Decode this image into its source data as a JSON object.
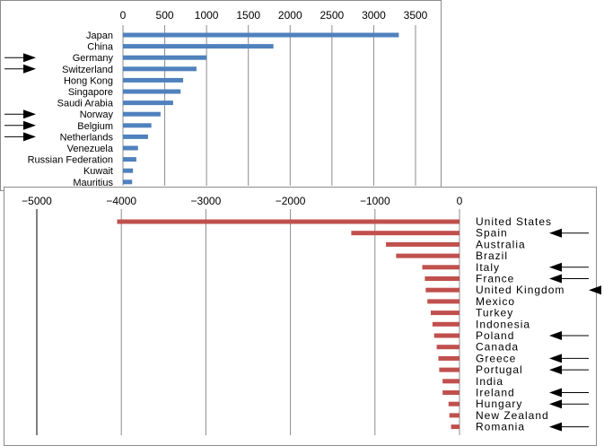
{
  "chart_data": [
    {
      "type": "bar",
      "orientation": "horizontal",
      "title": "",
      "xlabel": "",
      "ylabel": "",
      "xlim": [
        0,
        3500
      ],
      "xticks": [
        0,
        500,
        1000,
        1500,
        2000,
        2500,
        3000,
        3500
      ],
      "grid": true,
      "color": "#4F81BD",
      "categories": [
        "Japan",
        "China",
        "Germany",
        "Switzerland",
        "Hong Kong",
        "Singapore",
        "Saudi Arabia",
        "Norway",
        "Belgium",
        "Netherlands",
        "Venezuela",
        "Russian Federation",
        "Kuwait",
        "Mauritius"
      ],
      "values": [
        3300,
        1800,
        1000,
        880,
        720,
        690,
        600,
        450,
        340,
        300,
        180,
        160,
        120,
        110
      ],
      "marked": [
        "Germany",
        "Switzerland",
        "Norway",
        "Belgium",
        "Netherlands"
      ]
    },
    {
      "type": "bar",
      "orientation": "horizontal",
      "title": "",
      "xlabel": "",
      "ylabel": "",
      "xlim": [
        -5000,
        0
      ],
      "xticks": [
        -5000,
        -4000,
        -3000,
        -2000,
        -1000,
        0
      ],
      "grid": true,
      "color": "#C0504D",
      "categories": [
        "United States",
        "Spain",
        "Australia",
        "Brazil",
        "Italy",
        "France",
        "United Kingdom",
        "Mexico",
        "Turkey",
        "Indonesia",
        "Poland",
        "Canada",
        "Greece",
        "Portugal",
        "India",
        "Ireland",
        "Hungary",
        "New Zealand",
        "Romania"
      ],
      "values": [
        -4050,
        -1280,
        -870,
        -750,
        -440,
        -410,
        -400,
        -380,
        -340,
        -320,
        -300,
        -270,
        -250,
        -240,
        -200,
        -200,
        -130,
        -120,
        -100
      ],
      "marked": [
        "Spain",
        "Italy",
        "France",
        "United Kingdom",
        "Poland",
        "Greece",
        "Portugal",
        "Ireland",
        "Hungary",
        "Romania"
      ]
    }
  ]
}
